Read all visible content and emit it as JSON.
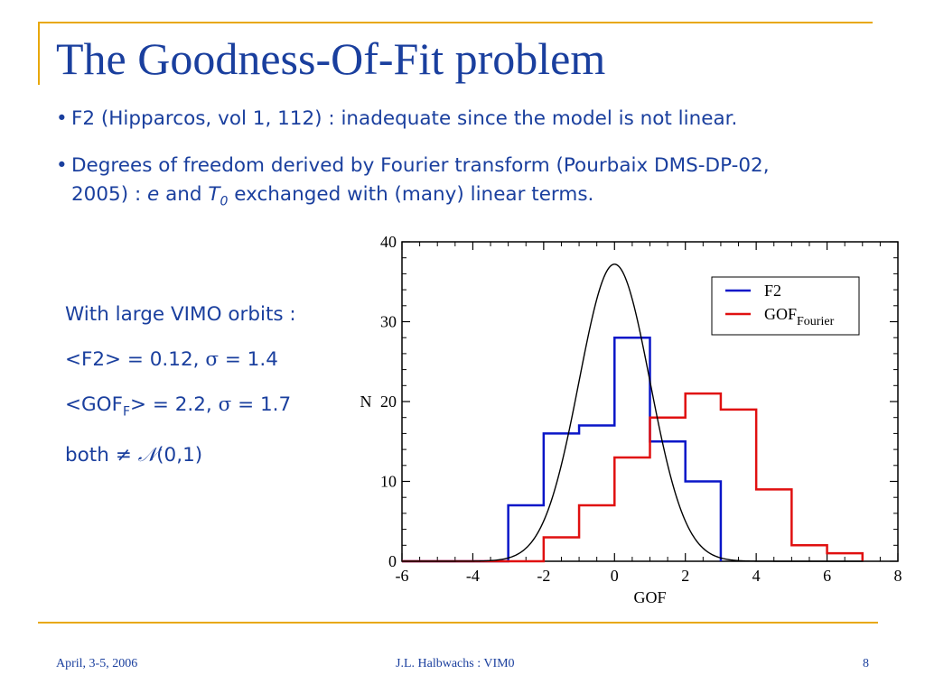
{
  "slide": {
    "title": "The Goodness-Of-Fit problem",
    "bullets": [
      {
        "marker": "•",
        "line1": "F2 (Hipparcos, vol 1, 112) : inadequate since the model is not linear."
      },
      {
        "marker": "•",
        "line1": "Degrees of freedom derived by Fourier transform (Pourbaix DMS-DP-02,",
        "line2_pre": "2005) : ",
        "line2_e": "e",
        "line2_and": " and ",
        "line2_T": "T",
        "line2_Tsub": "0",
        "line2_post": " exchanged with (many) linear terms."
      }
    ],
    "stats": {
      "line1": "With large VIMO orbits :",
      "line2_pre": "<F2> = 0.12, ",
      "line2_sigma": "σ",
      "line2_post": " = 1.4",
      "line3_pre": "<GOF",
      "line3_sub": "F",
      "line3_mid": "> = 2.2, ",
      "line3_sigma": "σ",
      "line3_post": " = 1.7",
      "line4_pre": "both ",
      "line4_neq": "≠",
      "line4_N": "𝒩",
      "line4_post": "(0,1)"
    },
    "footer": {
      "date": "April, 3-5, 2006",
      "author": "J.L. Halbwachs : VIM0",
      "page": "8"
    },
    "colors": {
      "title": "#1a3f9e",
      "rule": "#e8a80c",
      "f2": "#0a16c8",
      "gof": "#e01010",
      "gauss": "#000000"
    }
  },
  "chart_data": {
    "type": "line",
    "xlabel": "GOF",
    "ylabel": "N",
    "xlim": [
      -6,
      8
    ],
    "ylim": [
      0,
      40
    ],
    "xticks": [
      -6,
      -4,
      -2,
      0,
      2,
      4,
      6,
      8
    ],
    "yticks": [
      0,
      10,
      20,
      30,
      40
    ],
    "legend_position": "top-right",
    "series": [
      {
        "name": "F2",
        "kind": "histogram",
        "color": "#0a16c8",
        "bin_edges": [
          -3,
          -2,
          -1,
          0,
          1,
          2,
          3
        ],
        "values": [
          7,
          16,
          17,
          28,
          15,
          10
        ]
      },
      {
        "name": "GOF",
        "name_sub": "Fourier",
        "kind": "histogram",
        "color": "#e01010",
        "bin_edges": [
          -2,
          -1,
          0,
          1,
          2,
          3,
          4,
          5,
          6,
          7
        ],
        "values": [
          3,
          7,
          13,
          18,
          21,
          19,
          9,
          2,
          1
        ]
      },
      {
        "kind": "curve",
        "color": "#000000",
        "function": "gaussian",
        "mean": 0,
        "sigma": 1,
        "peak": 37.2
      }
    ]
  }
}
